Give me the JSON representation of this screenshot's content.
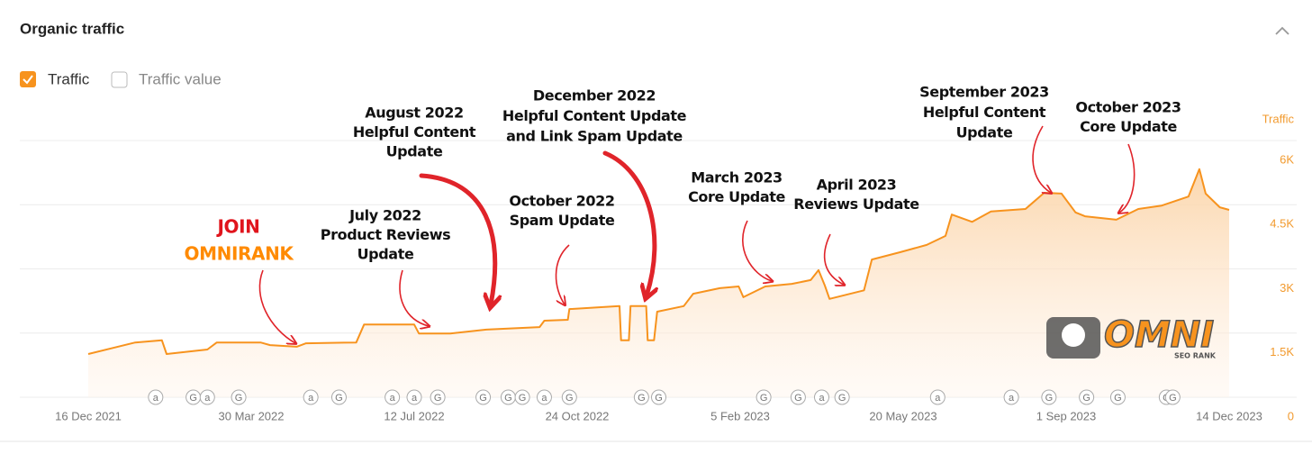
{
  "header": {
    "title": "Organic traffic"
  },
  "legend": [
    {
      "label": "Traffic",
      "checked": true
    },
    {
      "label": "Traffic value",
      "checked": false
    }
  ],
  "watermark": {
    "brand": "OMNI",
    "sub": "SEO RANK"
  },
  "chart_data": {
    "type": "area",
    "y_axis_label": "Traffic",
    "x": [
      "2021-12-16",
      "2022-01-15",
      "2022-02-01",
      "2022-02-04",
      "2022-03-02",
      "2022-03-08",
      "2022-04-05",
      "2022-04-11",
      "2022-04-28",
      "2022-05-04",
      "2022-06-05",
      "2022-06-10",
      "2022-07-12",
      "2022-07-15",
      "2022-08-04",
      "2022-08-27",
      "2022-09-30",
      "2022-10-03",
      "2022-10-18",
      "2022-10-19",
      "2022-11-20",
      "2022-11-21",
      "2022-11-26",
      "2022-11-27",
      "2022-12-07",
      "2022-12-08",
      "2022-12-12",
      "2022-12-14",
      "2022-12-31",
      "2023-01-06",
      "2023-01-23",
      "2023-02-04",
      "2023-02-07",
      "2023-02-21",
      "2023-03-10",
      "2023-03-22",
      "2023-03-27",
      "2023-03-31",
      "2023-04-03",
      "2023-04-25",
      "2023-04-30",
      "2023-05-18",
      "2023-06-04",
      "2023-06-16",
      "2023-06-20",
      "2023-07-03",
      "2023-07-15",
      "2023-08-06",
      "2023-08-18",
      "2023-08-29",
      "2023-09-07",
      "2023-09-13",
      "2023-10-03",
      "2023-10-17",
      "2023-11-01",
      "2023-11-18",
      "2023-11-25",
      "2023-11-29",
      "2023-12-08",
      "2023-12-14"
    ],
    "series": [
      {
        "name": "Traffic",
        "color": "#f7931e",
        "values": [
          1010,
          1280,
          1330,
          1010,
          1115,
          1280,
          1280,
          1220,
          1180,
          1260,
          1280,
          1700,
          1700,
          1490,
          1490,
          1580,
          1640,
          1790,
          1810,
          2060,
          2130,
          1330,
          1330,
          2130,
          2130,
          1330,
          1330,
          2000,
          2130,
          2420,
          2550,
          2590,
          2340,
          2590,
          2650,
          2740,
          2970,
          2610,
          2300,
          2500,
          3220,
          3390,
          3560,
          3770,
          4270,
          4100,
          4340,
          4400,
          4780,
          4760,
          4320,
          4230,
          4150,
          4400,
          4480,
          4690,
          5330,
          4760,
          4440,
          4380
        ]
      }
    ],
    "xlim": [
      "2021-12-16",
      "2023-12-14"
    ],
    "xticks": [
      {
        "value": "2021-12-16",
        "label": "16 Dec 2021"
      },
      {
        "value": "2022-03-30",
        "label": "30 Mar 2022"
      },
      {
        "value": "2022-07-12",
        "label": "12 Jul 2022"
      },
      {
        "value": "2022-10-24",
        "label": "24 Oct 2022"
      },
      {
        "value": "2023-02-05",
        "label": "5 Feb 2023"
      },
      {
        "value": "2023-05-20",
        "label": "20 May 2023"
      },
      {
        "value": "2023-09-01",
        "label": "1 Sep 2023"
      },
      {
        "value": "2023-12-14",
        "label": "14 Dec 2023"
      }
    ],
    "ylim": [
      0,
      6000
    ],
    "yticks": [
      0,
      {
        "value": 1500,
        "label": "1.5K"
      },
      {
        "value": 3000,
        "label": "3K"
      },
      {
        "value": 4500,
        "label": "4.5K"
      },
      {
        "value": 6000,
        "label": "6K"
      }
    ],
    "grid": true,
    "events": [
      {
        "x": "2022-01-28",
        "label": "a"
      },
      {
        "x": "2022-02-21",
        "label": "G"
      },
      {
        "x": "2022-03-02",
        "label": "a"
      },
      {
        "x": "2022-03-22",
        "label": "G"
      },
      {
        "x": "2022-05-07",
        "label": "a"
      },
      {
        "x": "2022-05-25",
        "label": "G"
      },
      {
        "x": "2022-06-28",
        "label": "a"
      },
      {
        "x": "2022-07-12",
        "label": "a"
      },
      {
        "x": "2022-07-27",
        "label": "G"
      },
      {
        "x": "2022-08-25",
        "label": "G"
      },
      {
        "x": "2022-09-10",
        "label": "G"
      },
      {
        "x": "2022-09-19",
        "label": "G"
      },
      {
        "x": "2022-10-03",
        "label": "a"
      },
      {
        "x": "2022-10-19",
        "label": "G"
      },
      {
        "x": "2022-12-04",
        "label": "G"
      },
      {
        "x": "2022-12-15",
        "label": "G"
      },
      {
        "x": "2023-02-20",
        "label": "G"
      },
      {
        "x": "2023-03-14",
        "label": "G"
      },
      {
        "x": "2023-03-29",
        "label": "a"
      },
      {
        "x": "2023-04-11",
        "label": "G"
      },
      {
        "x": "2023-06-11",
        "label": "a"
      },
      {
        "x": "2023-07-28",
        "label": "a"
      },
      {
        "x": "2023-08-21",
        "label": "G"
      },
      {
        "x": "2023-09-14",
        "label": "G"
      },
      {
        "x": "2023-10-04",
        "label": "G"
      },
      {
        "x": "2023-11-04",
        "label": "G"
      },
      {
        "x": "2023-11-08",
        "label": "G"
      }
    ],
    "annotations": [
      {
        "lines": [
          "JOIN",
          "OMNIRANK"
        ]
      },
      {
        "lines": [
          "July 2022",
          "Product Reviews",
          "Update"
        ]
      },
      {
        "lines": [
          "August 2022",
          "Helpful Content",
          "Update"
        ]
      },
      {
        "lines": [
          "October 2022",
          "Spam Update"
        ]
      },
      {
        "lines": [
          "December 2022",
          "Helpful Content Update",
          "and Link Spam Update"
        ]
      },
      {
        "lines": [
          "March 2023",
          "Core Update"
        ]
      },
      {
        "lines": [
          "April 2023",
          "Reviews Update"
        ]
      },
      {
        "lines": [
          "September 2023",
          "Helpful Content",
          "Update"
        ]
      },
      {
        "lines": [
          "October 2023",
          "Core Update"
        ]
      }
    ]
  }
}
